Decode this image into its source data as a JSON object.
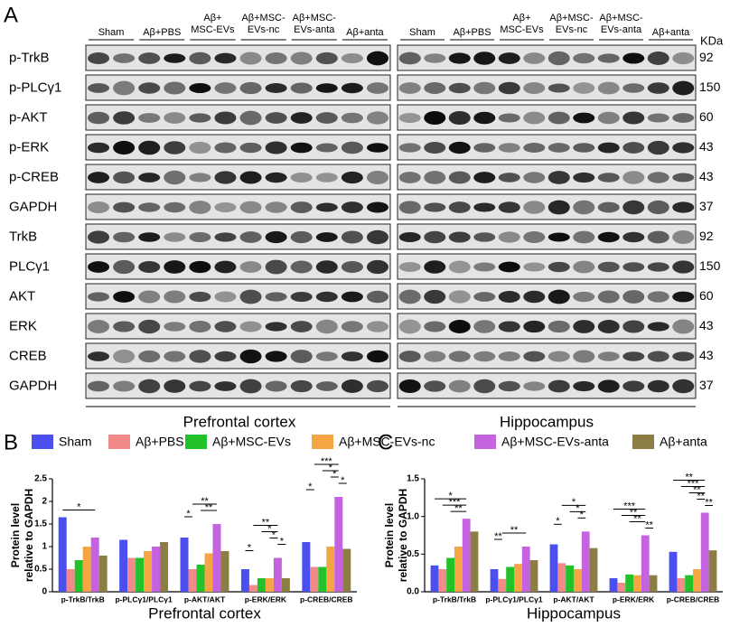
{
  "panel_a": {
    "label": "A",
    "kda_header": "KDa",
    "groups_left": [
      [
        "Sham"
      ],
      [
        "Aβ+PBS"
      ],
      [
        "Aβ+",
        "MSC-EVs"
      ],
      [
        "Aβ+MSC-",
        "EVs-nc"
      ],
      [
        "Aβ+MSC-",
        "EVs-anta"
      ],
      [
        "Aβ+anta"
      ]
    ],
    "groups_right": [
      [
        "Sham"
      ],
      [
        "Aβ+PBS"
      ],
      [
        "Aβ+",
        "MSC-EVs"
      ],
      [
        "Aβ+MSC-",
        "EVs-nc"
      ],
      [
        "Aβ+MSC-",
        "EVs-anta"
      ],
      [
        "Aβ+anta"
      ]
    ],
    "rows": [
      {
        "name": "p-TrkB",
        "kda": 92
      },
      {
        "name": "p-PLCγ1",
        "kda": 150
      },
      {
        "name": "p-AKT",
        "kda": 60
      },
      {
        "name": "p-ERK",
        "kda": 43
      },
      {
        "name": "p-CREB",
        "kda": 43
      },
      {
        "name": "GAPDH",
        "kda": 37
      },
      {
        "name": "TrkB",
        "kda": 92
      },
      {
        "name": "PLCγ1",
        "kda": 150
      },
      {
        "name": "AKT",
        "kda": 60
      },
      {
        "name": "ERK",
        "kda": 43
      },
      {
        "name": "CREB",
        "kda": 43
      },
      {
        "name": "GAPDH",
        "kda": 37
      }
    ],
    "region_left": "Prefrontal cortex",
    "region_right": "Hippocampus"
  },
  "chart_data": [
    {
      "type": "bar",
      "panel": "B",
      "ylabel": [
        "Protein level",
        "relative to GAPDH"
      ],
      "xlabel": "Prefrontal cortex",
      "categories": [
        "p-TrkB/TrkB",
        "p-PLCγ1/PLCγ1",
        "p-AKT/AKT",
        "p-ERK/ERK",
        "p-CREB/CREB"
      ],
      "ylim": [
        0,
        2.5
      ],
      "yticks": [
        0,
        0.5,
        1,
        1.5,
        2,
        2.5
      ],
      "series": [
        {
          "name": "Sham",
          "color": "#4b4ff0",
          "values": [
            1.65,
            1.15,
            1.2,
            0.5,
            1.1
          ]
        },
        {
          "name": "Aβ+PBS",
          "color": "#f28a8a",
          "values": [
            0.5,
            0.75,
            0.5,
            0.15,
            0.55
          ]
        },
        {
          "name": "Aβ+MSC-EVs",
          "color": "#22c22a",
          "values": [
            0.7,
            0.75,
            0.6,
            0.3,
            0.55
          ]
        },
        {
          "name": "Aβ+MSC-EVs-nc",
          "color": "#f6a545",
          "values": [
            1.0,
            0.9,
            0.85,
            0.3,
            1.0
          ]
        },
        {
          "name": "Aβ+MSC-EVs-anta",
          "color": "#c462e0",
          "values": [
            1.2,
            1.0,
            1.5,
            0.75,
            2.1
          ]
        },
        {
          "name": "Aβ+anta",
          "color": "#8c7d45",
          "values": [
            0.8,
            1.1,
            0.9,
            0.3,
            0.95
          ]
        }
      ],
      "annotations": [
        [
          {
            "label": "*",
            "from": 0,
            "to": 4
          }
        ],
        [],
        [
          {
            "label": "**",
            "from": 1,
            "to": 4
          },
          {
            "label": "**",
            "from": 2,
            "to": 4
          },
          {
            "label": "*",
            "from": 0,
            "to": 1
          }
        ],
        [
          {
            "label": "**",
            "from": 1,
            "to": 4
          },
          {
            "label": "*",
            "from": 2,
            "to": 4
          },
          {
            "label": "*",
            "from": 3,
            "to": 4
          },
          {
            "label": "*",
            "from": 4,
            "to": 5
          },
          {
            "label": "*",
            "from": 0,
            "to": 1
          }
        ],
        [
          {
            "label": "***",
            "from": 1,
            "to": 4
          },
          {
            "label": "*",
            "from": 2,
            "to": 4
          },
          {
            "label": "*",
            "from": 3,
            "to": 4
          },
          {
            "label": "*",
            "from": 4,
            "to": 5
          },
          {
            "label": "*",
            "from": 0,
            "to": 1
          }
        ]
      ]
    },
    {
      "type": "bar",
      "panel": "C",
      "ylabel": [
        "Protein level",
        "relative to GAPDH"
      ],
      "xlabel": "Hippocampus",
      "categories": [
        "p-TrkB/TrkB",
        "p-PLCγ1/PLCγ1",
        "p-AKT/AKT",
        "p-ERK/ERK",
        "p-CREB/CREB"
      ],
      "ylim": [
        0,
        1.5
      ],
      "yticks": [
        {
          "value": 0,
          "label": "0.0"
        },
        0.5,
        {
          "value": 1,
          "label": "1.0"
        },
        1.5
      ],
      "series": [
        {
          "color": "#4b4ff0",
          "values": [
            0.35,
            0.3,
            0.63,
            0.18,
            0.53
          ]
        },
        {
          "color": "#f28a8a",
          "values": [
            0.3,
            0.17,
            0.38,
            0.12,
            0.18
          ]
        },
        {
          "color": "#22c22a",
          "values": [
            0.45,
            0.33,
            0.35,
            0.23,
            0.22
          ]
        },
        {
          "color": "#f6a545",
          "values": [
            0.6,
            0.37,
            0.3,
            0.22,
            0.3
          ]
        },
        {
          "color": "#c462e0",
          "values": [
            0.97,
            0.6,
            0.8,
            0.75,
            1.05
          ]
        },
        {
          "color": "#8c7d45",
          "values": [
            0.8,
            0.42,
            0.58,
            0.22,
            0.55
          ]
        }
      ],
      "annotations": [
        [
          {
            "label": "*",
            "from": 0,
            "to": 4
          },
          {
            "label": "***",
            "from": 1,
            "to": 4
          },
          {
            "label": "**",
            "from": 2,
            "to": 4
          }
        ],
        [
          {
            "label": "**",
            "from": 1,
            "to": 4
          },
          {
            "label": "**",
            "from": 0,
            "to": 1
          }
        ],
        [
          {
            "label": "*",
            "from": 1,
            "to": 4
          },
          {
            "label": "*",
            "from": 2,
            "to": 4
          },
          {
            "label": "*",
            "from": 3,
            "to": 4
          },
          {
            "label": "*",
            "from": 0,
            "to": 1
          }
        ],
        [
          {
            "label": "***",
            "from": 0,
            "to": 4
          },
          {
            "label": "**",
            "from": 1,
            "to": 4
          },
          {
            "label": "**",
            "from": 2,
            "to": 4
          },
          {
            "label": "**",
            "from": 4,
            "to": 5
          }
        ],
        [
          {
            "label": "**",
            "from": 0,
            "to": 4
          },
          {
            "label": "***",
            "from": 1,
            "to": 4
          },
          {
            "label": "**",
            "from": 2,
            "to": 4
          },
          {
            "label": "**",
            "from": 3,
            "to": 4
          },
          {
            "label": "**",
            "from": 4,
            "to": 5
          }
        ]
      ]
    }
  ]
}
